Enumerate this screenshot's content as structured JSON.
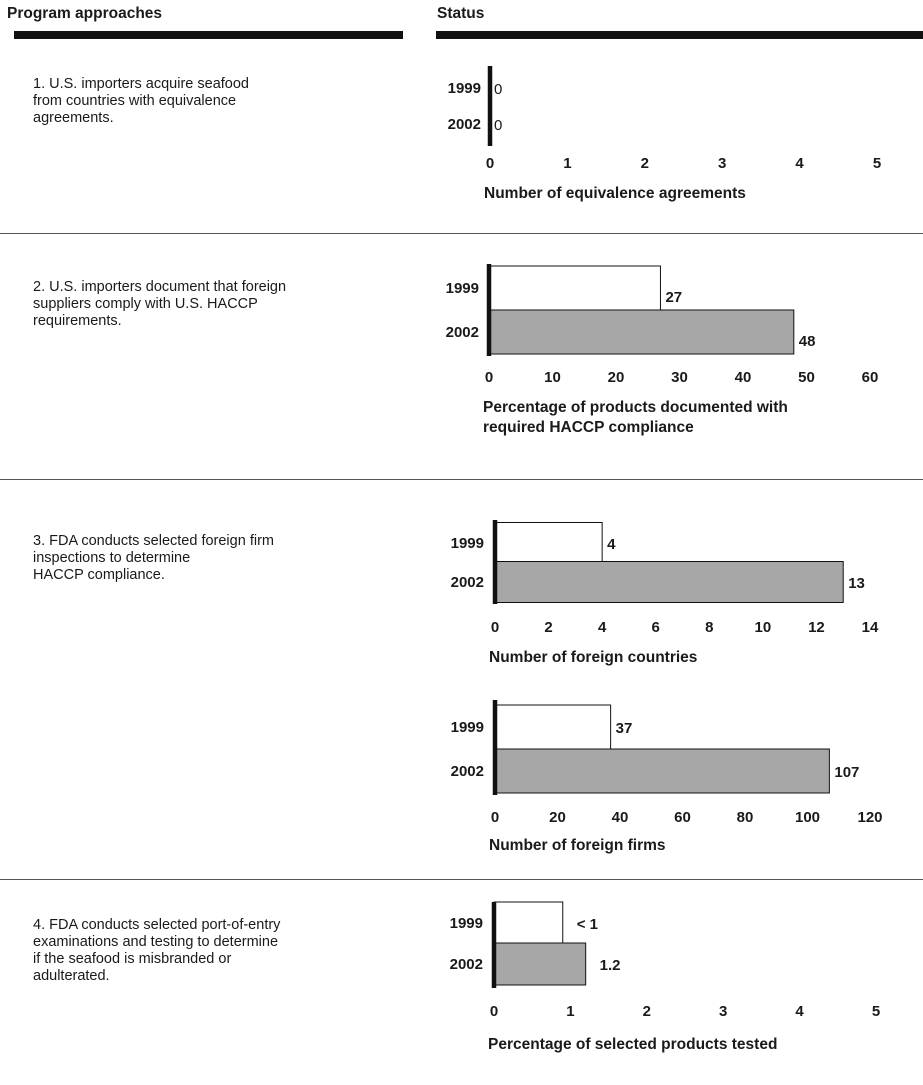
{
  "header": {
    "left_label": "Program approaches",
    "right_label": "Status"
  },
  "rows": [
    {
      "text": "1. U.S. importers acquire seafood\n   from countries with equivalence\n   agreements."
    },
    {
      "text": "2. U.S. importers document that foreign\n   suppliers comply with U.S. HACCP\n   requirements."
    },
    {
      "text": "3. FDA conducts selected foreign firm\n   inspections to determine\n   HACCP compliance."
    },
    {
      "text": "4. FDA conducts selected port-of-entry\n   examinations and testing to determine\n   if the seafood is misbranded or\n   adulterated."
    }
  ],
  "colors": {
    "bar_1999": "#ffffff",
    "bar_2002": "#a7a7a7",
    "bar_stroke": "#111111",
    "axis": "#111111"
  },
  "chart_data": [
    {
      "type": "bar",
      "orientation": "horizontal",
      "categories": [
        "1999",
        "2002"
      ],
      "values": [
        0,
        0
      ],
      "value_labels": [
        "0",
        "0"
      ],
      "xlim": [
        0,
        5
      ],
      "ticks": [
        0,
        1,
        2,
        3,
        4,
        5
      ],
      "xlabel": "Number of equivalence agreements"
    },
    {
      "type": "bar",
      "orientation": "horizontal",
      "categories": [
        "1999",
        "2002"
      ],
      "values": [
        27,
        48
      ],
      "value_labels": [
        "27",
        "48"
      ],
      "xlim": [
        0,
        60
      ],
      "ticks": [
        0,
        10,
        20,
        30,
        40,
        50,
        60
      ],
      "xlabel": "Percentage of products documented with\nrequired HACCP compliance"
    },
    {
      "type": "bar",
      "orientation": "horizontal",
      "categories": [
        "1999",
        "2002"
      ],
      "values": [
        4,
        13
      ],
      "value_labels": [
        "4",
        "13"
      ],
      "xlim": [
        0,
        14
      ],
      "ticks": [
        0,
        2,
        4,
        6,
        8,
        10,
        12,
        14
      ],
      "xlabel": "Number of foreign countries"
    },
    {
      "type": "bar",
      "orientation": "horizontal",
      "categories": [
        "1999",
        "2002"
      ],
      "values": [
        37,
        107
      ],
      "value_labels": [
        "37",
        "107"
      ],
      "xlim": [
        0,
        120
      ],
      "ticks": [
        0,
        20,
        40,
        60,
        80,
        100,
        120
      ],
      "xlabel": "Number of foreign firms"
    },
    {
      "type": "bar",
      "orientation": "horizontal",
      "categories": [
        "1999",
        "2002"
      ],
      "values": [
        0.9,
        1.2
      ],
      "value_labels": [
        "< 1",
        "1.2"
      ],
      "xlim": [
        0,
        5
      ],
      "ticks": [
        0,
        1,
        2,
        3,
        4,
        5
      ],
      "xlabel": "Percentage of selected products tested"
    }
  ]
}
